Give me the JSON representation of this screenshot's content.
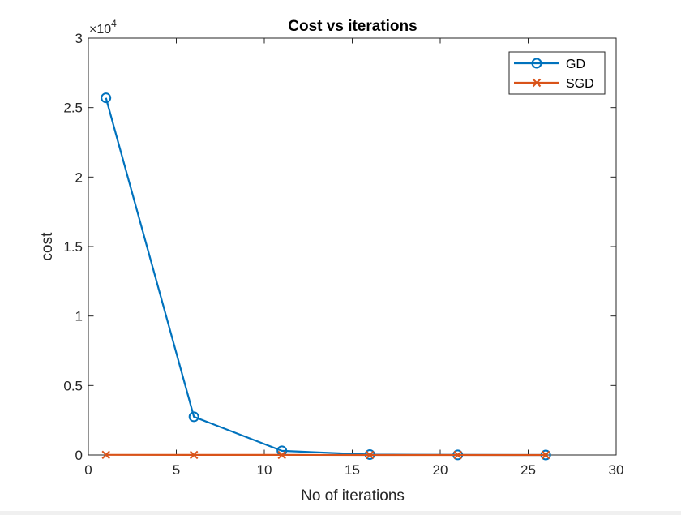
{
  "chart_data": {
    "type": "line",
    "title": "Cost vs iterations",
    "xlabel": "No of iterations",
    "ylabel": "cost",
    "xlim": [
      0,
      30
    ],
    "ylim": [
      0,
      30000
    ],
    "x_ticks": [
      0,
      5,
      10,
      15,
      20,
      25,
      30
    ],
    "y_ticks": [
      0,
      0.5,
      1,
      1.5,
      2,
      2.5,
      3
    ],
    "y_multiplier": {
      "base": "×10",
      "exponent": "4"
    },
    "grid": false,
    "legend_position": "top-right",
    "series": [
      {
        "name": "GD",
        "marker": "circle",
        "color": "#0072BD",
        "x": [
          1,
          6,
          11,
          16,
          21,
          26
        ],
        "y": [
          25700,
          2750,
          300,
          30,
          5,
          1
        ]
      },
      {
        "name": "SGD",
        "marker": "x",
        "color": "#D95319",
        "x": [
          1,
          6,
          11,
          16,
          21,
          26
        ],
        "y": [
          10,
          5,
          3,
          2,
          1,
          1
        ]
      }
    ]
  }
}
